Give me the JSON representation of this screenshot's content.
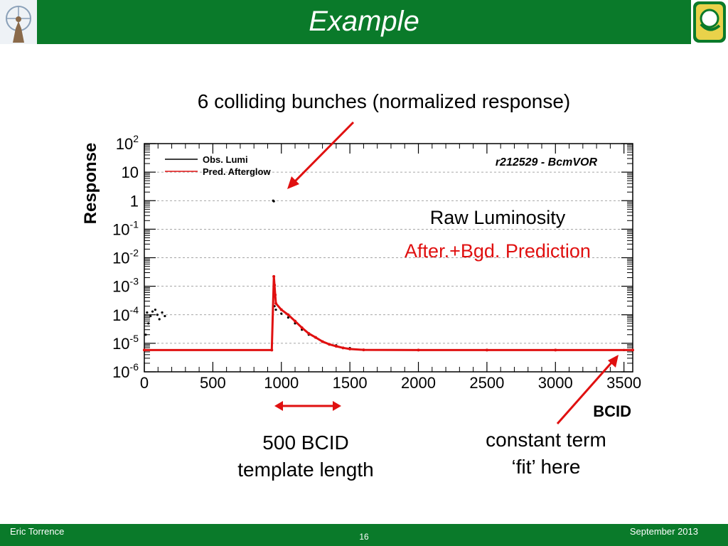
{
  "slide": {
    "title": "Example",
    "subtitle": "6 colliding bunches (normalized response)",
    "labels": {
      "raw": "Raw Luminosity",
      "pred": "After.+Bgd. Prediction",
      "template_line1": "500 BCID",
      "template_line2": "template length",
      "const_line1": "constant term",
      "const_line2": "‘fit’ here"
    },
    "footer": {
      "author": "Eric Torrence",
      "date": "September 2013",
      "page": "16"
    },
    "colors": {
      "header_green": "#0a7a2a",
      "arrow_red": "#e01010",
      "pred_red": "#e01010"
    },
    "logos": [
      "atlas-logo",
      "duck-logo"
    ]
  },
  "chart_data": {
    "type": "scatter",
    "title": "",
    "annotation": "r212529 - BcmVOR",
    "xlabel": "BCID",
    "ylabel": "Response",
    "xlim": [
      0,
      3564
    ],
    "ylim": [
      1e-06,
      100
    ],
    "yscale": "log",
    "xticks": [
      0,
      500,
      1000,
      1500,
      2000,
      2500,
      3000,
      3500
    ],
    "yticks": [
      {
        "value": 100,
        "base": "10",
        "exp": "2"
      },
      {
        "value": 10,
        "base": "10",
        "exp": ""
      },
      {
        "value": 1,
        "base": "1",
        "exp": ""
      },
      {
        "value": 0.1,
        "base": "10",
        "exp": "-1"
      },
      {
        "value": 0.01,
        "base": "10",
        "exp": "-2"
      },
      {
        "value": 0.001,
        "base": "10",
        "exp": "-3"
      },
      {
        "value": 0.0001,
        "base": "10",
        "exp": "-4"
      },
      {
        "value": 1e-05,
        "base": "10",
        "exp": "-5"
      },
      {
        "value": 1e-06,
        "base": "10",
        "exp": "-6"
      }
    ],
    "legend_position": "top-left",
    "series": [
      {
        "name": "Obs. Lumi",
        "color": "#000000",
        "points": [
          [
            20,
            0.00012
          ],
          [
            45,
            9e-05
          ],
          [
            60,
            0.00013
          ],
          [
            80,
            0.00015
          ],
          [
            95,
            0.0001
          ],
          [
            110,
            7e-05
          ],
          [
            130,
            0.00012
          ],
          [
            150,
            9e-05
          ],
          [
            10,
            2e-05
          ],
          [
            30,
            5e-05
          ],
          [
            940,
            1.0
          ],
          [
            945,
            0.95
          ],
          [
            950,
            0.0002
          ],
          [
            960,
            0.00015
          ],
          [
            1000,
            0.00011
          ],
          [
            1050,
            8e-05
          ],
          [
            1100,
            5e-05
          ],
          [
            1150,
            3e-05
          ],
          [
            1200,
            2e-05
          ],
          [
            1300,
            1.15e-05
          ],
          [
            1400,
            8.5e-06
          ],
          [
            1500,
            6.8e-06
          ],
          [
            2000,
            5.8e-06
          ],
          [
            2500,
            5.8e-06
          ],
          [
            3000,
            5.8e-06
          ],
          [
            3500,
            5.8e-06
          ]
        ]
      },
      {
        "name": "Pred. Afterglow",
        "color": "#e01010",
        "curve": [
          [
            0,
            5.8e-06
          ],
          [
            930,
            5.8e-06
          ],
          [
            945,
            0.0022
          ],
          [
            950,
            0.0011
          ],
          [
            955,
            0.0005
          ],
          [
            960,
            0.00025
          ],
          [
            1000,
            0.00015
          ],
          [
            1050,
            0.0001
          ],
          [
            1100,
            6e-05
          ],
          [
            1150,
            3.5e-05
          ],
          [
            1200,
            2.2e-05
          ],
          [
            1250,
            1.6e-05
          ],
          [
            1300,
            1.15e-05
          ],
          [
            1350,
            9.2e-06
          ],
          [
            1400,
            7.9e-06
          ],
          [
            1450,
            6.9e-06
          ],
          [
            1500,
            6.3e-06
          ],
          [
            1600,
            5.9e-06
          ],
          [
            2000,
            5.8e-06
          ],
          [
            2500,
            5.8e-06
          ],
          [
            3000,
            5.8e-06
          ],
          [
            3564,
            5.8e-06
          ]
        ]
      }
    ]
  }
}
